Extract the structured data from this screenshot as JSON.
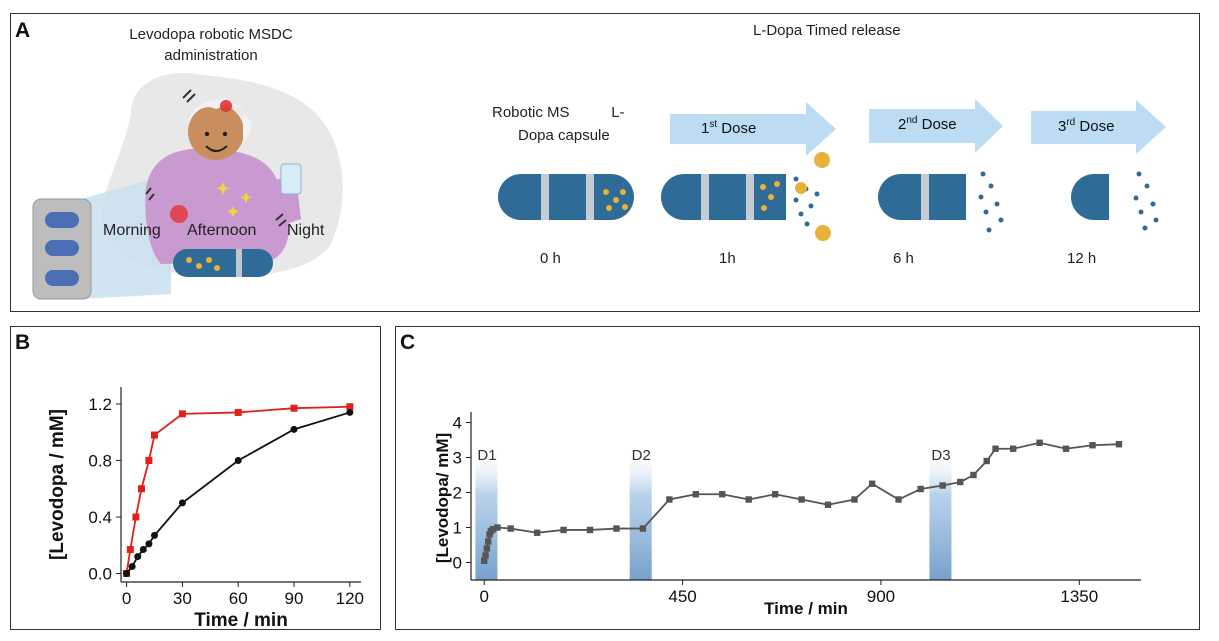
{
  "panel_a": {
    "label": "A",
    "admin_title_line1": "Levodopa  robotic MSDC",
    "admin_title_line2": "administration",
    "times": [
      "Morning",
      "Afternoon",
      "Night"
    ],
    "release_title": "L-Dopa Timed release",
    "capsule_label_line1": "Robotic MS          L-",
    "capsule_label_line2": "Dopa capsule",
    "doses": [
      {
        "base": "1",
        "sup": "st",
        "rest": " Dose"
      },
      {
        "base": "2",
        "sup": "nd",
        "rest": " Dose"
      },
      {
        "base": "3",
        "sup": "rd",
        "rest": " Dose"
      }
    ],
    "time_marks": [
      "0 h",
      "1h",
      "6 h",
      "12 h"
    ],
    "colors": {
      "capsule": "#2f6b97",
      "arrow": "#bcdcf3",
      "timeline": "#e9e9e9",
      "particle": "#2f6b97",
      "gold": "#e6b23a"
    }
  },
  "chart_data": [
    {
      "panel": "B",
      "type": "line",
      "xlabel": "Time / min",
      "ylabel": "[Levodopa / mM]",
      "xlim": [
        -3,
        126
      ],
      "ylim": [
        -0.06,
        1.32
      ],
      "xticks": [
        0,
        30,
        60,
        90,
        120
      ],
      "yticks": [
        0.0,
        0.4,
        0.8,
        1.2
      ],
      "ytick_labels": [
        "0.0",
        "0.4",
        "0.8",
        "1.2"
      ],
      "series": [
        {
          "color": "#e0201b",
          "marker": "square",
          "x": [
            0,
            2,
            5,
            8,
            12,
            15,
            30,
            60,
            90,
            120
          ],
          "y": [
            0.0,
            0.17,
            0.4,
            0.6,
            0.8,
            0.98,
            1.13,
            1.14,
            1.17,
            1.18
          ]
        },
        {
          "color": "#111111",
          "marker": "circle",
          "x": [
            0,
            3,
            6,
            9,
            12,
            15,
            30,
            60,
            90,
            120
          ],
          "y": [
            0.0,
            0.05,
            0.12,
            0.17,
            0.21,
            0.27,
            0.5,
            0.8,
            1.02,
            1.14
          ]
        }
      ]
    },
    {
      "panel": "C",
      "type": "line",
      "xlabel": "Time / min",
      "ylabel": "[Levodopa/ mM]",
      "xlim": [
        -30,
        1490
      ],
      "ylim": [
        -0.5,
        4.3
      ],
      "xticks": [
        0,
        450,
        900,
        1350
      ],
      "yticks": [
        0,
        1,
        2,
        3,
        4
      ],
      "dose_bands": [
        {
          "label": "D1",
          "x0": -20,
          "x1": 30
        },
        {
          "label": "D2",
          "x0": 330,
          "x1": 380
        },
        {
          "label": "D3",
          "x0": 1010,
          "x1": 1060
        }
      ],
      "series": [
        {
          "color": "#555555",
          "marker": "square",
          "x": [
            0,
            3,
            6,
            9,
            12,
            15,
            20,
            30,
            60,
            120,
            180,
            240,
            300,
            360,
            420,
            480,
            540,
            600,
            660,
            720,
            780,
            840,
            880,
            940,
            990,
            1040,
            1080,
            1110,
            1140,
            1160,
            1200,
            1260,
            1320,
            1380,
            1440
          ],
          "y": [
            0.05,
            0.2,
            0.4,
            0.6,
            0.8,
            0.9,
            0.95,
            1.0,
            0.97,
            0.85,
            0.93,
            0.93,
            0.97,
            0.97,
            1.8,
            1.95,
            1.95,
            1.8,
            1.95,
            1.8,
            1.65,
            1.8,
            2.25,
            1.8,
            2.1,
            2.2,
            2.3,
            2.5,
            2.9,
            3.25,
            3.25,
            3.42,
            3.25,
            3.35,
            3.38
          ]
        }
      ]
    }
  ],
  "panel_b_label": "B",
  "panel_c_label": "C"
}
